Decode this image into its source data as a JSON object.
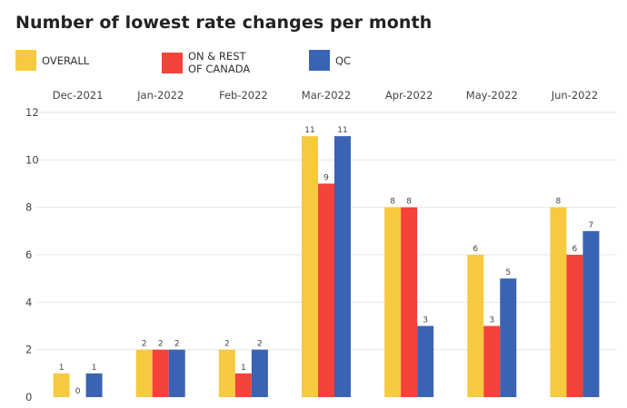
{
  "chart_data": {
    "type": "bar",
    "title": "Number of lowest rate changes per month",
    "categories": [
      "Dec-2021",
      "Jan-2022",
      "Feb-2022",
      "Mar-2022",
      "Apr-2022",
      "May-2022",
      "Jun-2022"
    ],
    "series": [
      {
        "name": "OVERALL",
        "color": "#f6ca3f",
        "values": [
          1,
          2,
          2,
          11,
          8,
          6,
          8
        ]
      },
      {
        "name": "ON & REST\nOF CANADA",
        "color": "#f5423a",
        "values": [
          0,
          2,
          1,
          9,
          8,
          3,
          6
        ]
      },
      {
        "name": "QC",
        "color": "#3a63b3",
        "values": [
          1,
          2,
          2,
          11,
          3,
          5,
          7
        ]
      }
    ],
    "yticks": [
      0,
      2,
      4,
      6,
      8,
      10,
      12
    ],
    "ylim": [
      0,
      12
    ],
    "grid": true,
    "category_labels_position": "top",
    "legend_position": "top",
    "xlabel": "",
    "ylabel": ""
  }
}
